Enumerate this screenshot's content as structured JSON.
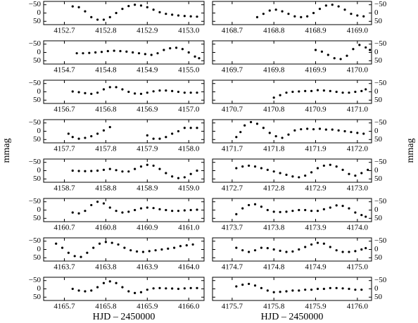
{
  "chart_data": [
    {
      "type": "scatter",
      "color": "#000000",
      "y_inverted": true,
      "y_axis_side": "left",
      "xlim": [
        4152.65,
        4153.037
      ],
      "ylim": [
        -70,
        70
      ],
      "xticks": [
        4152.7,
        4152.8,
        4152.9,
        {
          "value": 4153.0,
          "label": "4153.0"
        }
      ],
      "yticks": [
        {
          "value": -50,
          "label": "−50"
        },
        0,
        50
      ],
      "x": [
        4152.72,
        4152.735,
        4152.75,
        4152.765,
        4152.78,
        4152.795,
        4152.81,
        4152.825,
        4152.84,
        4152.855,
        4152.87,
        4152.885,
        4152.9,
        4152.915,
        4152.93,
        4152.945,
        4152.96,
        4152.975,
        4152.99,
        4153.005,
        4153.02
      ],
      "values": [
        -40,
        -35,
        -10,
        25,
        40,
        40,
        25,
        0,
        -25,
        -42,
        -50,
        -45,
        -35,
        -20,
        -5,
        5,
        10,
        15,
        18,
        20,
        22
      ]
    },
    {
      "type": "scatter",
      "color": "#000000",
      "y_inverted": true,
      "y_axis_side": "left",
      "xlim": [
        4154.65,
        4155.037
      ],
      "ylim": [
        -70,
        70
      ],
      "xticks": [
        4154.7,
        4154.8,
        4154.9,
        {
          "value": 4155.0,
          "label": "4155.0"
        }
      ],
      "yticks": [
        {
          "value": -50,
          "label": "−50"
        },
        0,
        50
      ],
      "x": [
        4154.73,
        4154.745,
        4154.76,
        4154.775,
        4154.79,
        4154.805,
        4154.82,
        4154.835,
        4154.85,
        4154.865,
        4154.88,
        4154.895,
        4154.91,
        4154.925,
        4154.94,
        4154.955,
        4154.97,
        4154.985,
        4155.0,
        4155.015,
        4155.025
      ],
      "values": [
        5,
        5,
        3,
        0,
        -3,
        -8,
        -10,
        -8,
        -5,
        0,
        5,
        10,
        15,
        5,
        -15,
        -25,
        -28,
        -20,
        0,
        25,
        35
      ]
    },
    {
      "type": "scatter",
      "color": "#000000",
      "y_inverted": true,
      "y_axis_side": "left",
      "xlim": [
        4156.65,
        4157.037
      ],
      "ylim": [
        -70,
        70
      ],
      "xticks": [
        4156.7,
        4156.8,
        4156.9,
        {
          "value": 4157.0,
          "label": "4157.0"
        }
      ],
      "yticks": [
        {
          "value": -50,
          "label": "−50"
        },
        0,
        50
      ],
      "x": [
        4156.72,
        4156.735,
        4156.75,
        4156.765,
        4156.78,
        4156.795,
        4156.81,
        4156.825,
        4156.84,
        4156.855,
        4156.87,
        4156.885,
        4156.9,
        4156.915,
        4156.93,
        4156.945,
        4156.96,
        4156.975,
        4156.99,
        4157.005,
        4157.02
      ],
      "values": [
        -2,
        2,
        8,
        12,
        5,
        -15,
        -28,
        -28,
        -15,
        0,
        10,
        12,
        5,
        -3,
        -8,
        -8,
        -5,
        0,
        5,
        5,
        5
      ]
    },
    {
      "type": "scatter",
      "color": "#000000",
      "y_inverted": true,
      "y_axis_side": "left",
      "ylabel": "mmag",
      "xlim": [
        4157.65,
        4158.037
      ],
      "ylim": [
        -70,
        70
      ],
      "xticks": [
        4157.7,
        4157.8,
        4157.9,
        {
          "value": 4158.0,
          "label": "4158.0"
        }
      ],
      "yticks": [
        {
          "value": -50,
          "label": "−50"
        },
        0,
        50
      ],
      "x": [
        4157.71,
        4157.72,
        4157.735,
        4157.75,
        4157.765,
        4157.78,
        4157.795,
        4157.81,
        4157.9,
        4157.915,
        4157.93,
        4157.945,
        4157.96,
        4157.975,
        4157.99,
        4158.005,
        4158.02
      ],
      "values": [
        15,
        35,
        45,
        40,
        30,
        15,
        -5,
        -25,
        25,
        45,
        45,
        35,
        15,
        0,
        -20,
        -20,
        -20
      ]
    },
    {
      "type": "scatter",
      "color": "#000000",
      "y_inverted": true,
      "y_axis_side": "left",
      "xlim": [
        4158.65,
        4159.037
      ],
      "ylim": [
        -70,
        70
      ],
      "xticks": [
        4158.7,
        4158.8,
        4158.9,
        {
          "value": 4159.0,
          "label": "4159.0"
        }
      ],
      "yticks": [
        {
          "value": -50,
          "label": "−50"
        },
        0,
        50
      ],
      "x": [
        4158.72,
        4158.735,
        4158.75,
        4158.765,
        4158.78,
        4158.795,
        4158.81,
        4158.825,
        4158.84,
        4158.855,
        4158.87,
        4158.885,
        4158.9,
        4158.915,
        4158.93,
        4158.945,
        4158.96,
        4158.975,
        4158.99,
        4159.005,
        4159.02
      ],
      "values": [
        0,
        2,
        3,
        2,
        0,
        -5,
        -10,
        -3,
        5,
        5,
        -10,
        -25,
        -35,
        -30,
        -10,
        15,
        35,
        45,
        40,
        20,
        0
      ]
    },
    {
      "type": "scatter",
      "color": "#000000",
      "y_inverted": true,
      "y_axis_side": "left",
      "xlim": [
        4160.65,
        4161.037
      ],
      "ylim": [
        -70,
        70
      ],
      "xticks": [
        4160.7,
        4160.8,
        4160.9,
        {
          "value": 4161.0,
          "label": "4161.0"
        }
      ],
      "yticks": [
        {
          "value": -50,
          "label": "−50"
        },
        0,
        50
      ],
      "x": [
        4160.72,
        4160.735,
        4160.75,
        4160.765,
        4160.78,
        4160.795,
        4160.81,
        4160.825,
        4160.84,
        4160.855,
        4160.87,
        4160.885,
        4160.9,
        4160.915,
        4160.93,
        4160.945,
        4160.96,
        4160.975,
        4160.99,
        4161.005,
        4161.02
      ],
      "values": [
        15,
        20,
        5,
        -30,
        -50,
        -40,
        -15,
        5,
        15,
        10,
        0,
        -10,
        -15,
        -12,
        -5,
        0,
        5,
        5,
        2,
        0,
        -2
      ]
    },
    {
      "type": "scatter",
      "color": "#000000",
      "y_inverted": true,
      "y_axis_side": "left",
      "xlim": [
        4163.65,
        4164.037
      ],
      "ylim": [
        -70,
        70
      ],
      "xticks": [
        4163.7,
        4163.8,
        4163.9,
        {
          "value": 4164.0,
          "label": "4164.0"
        }
      ],
      "yticks": [
        {
          "value": -50,
          "label": "−50"
        },
        0,
        50
      ],
      "x": [
        4163.68,
        4163.695,
        4163.71,
        4163.725,
        4163.74,
        4163.755,
        4163.77,
        4163.785,
        4163.8,
        4163.815,
        4163.83,
        4163.845,
        4163.86,
        4163.875,
        4163.89,
        4163.905,
        4163.92,
        4163.935,
        4163.95,
        4163.965,
        4163.98,
        4163.995,
        4164.01
      ],
      "values": [
        -35,
        -10,
        20,
        40,
        45,
        20,
        -10,
        -35,
        -45,
        -40,
        -30,
        -10,
        5,
        12,
        15,
        10,
        5,
        0,
        -5,
        -10,
        -20,
        -25,
        -30
      ]
    },
    {
      "type": "scatter",
      "color": "#000000",
      "y_inverted": true,
      "y_axis_side": "left",
      "xlabel": "HJD – 2450000",
      "xlim": [
        4165.65,
        4166.037
      ],
      "ylim": [
        -70,
        70
      ],
      "xticks": [
        4165.7,
        4165.8,
        4165.9,
        {
          "value": 4166.0,
          "label": "4166.0"
        }
      ],
      "yticks": [
        {
          "value": -50,
          "label": "−50"
        },
        0,
        50
      ],
      "x": [
        4165.72,
        4165.735,
        4165.75,
        4165.765,
        4165.78,
        4165.795,
        4165.81,
        4165.825,
        4165.84,
        4165.855,
        4165.87,
        4165.885,
        4165.9,
        4165.915,
        4165.93,
        4165.945,
        4165.96,
        4165.975,
        4165.99,
        4166.005,
        4166.02
      ],
      "values": [
        0,
        10,
        15,
        10,
        -10,
        -35,
        -45,
        -35,
        -10,
        15,
        25,
        20,
        5,
        -3,
        -5,
        -3,
        -2,
        0,
        -3,
        -5,
        -5
      ]
    },
    {
      "type": "scatter",
      "color": "#000000",
      "y_inverted": true,
      "y_axis_side": "right",
      "xlim": [
        4168.653,
        4169.034
      ],
      "ylim": [
        -70,
        70
      ],
      "xticks": [
        4168.7,
        4168.8,
        4168.9,
        {
          "value": 4169.0,
          "label": "4169.0"
        }
      ],
      "yticks": [
        {
          "value": -50,
          "label": "−50"
        },
        0,
        50
      ],
      "x": [
        4168.76,
        4168.775,
        4168.79,
        4168.805,
        4168.82,
        4168.835,
        4168.85,
        4168.865,
        4168.88,
        4168.895,
        4168.91,
        4168.925,
        4168.94,
        4168.955,
        4168.97,
        4168.985,
        4169.0,
        4169.015
      ],
      "values": [
        25,
        5,
        -15,
        -20,
        -10,
        5,
        20,
        25,
        20,
        0,
        -25,
        -45,
        -50,
        -40,
        -20,
        5,
        15,
        20
      ]
    },
    {
      "type": "scatter",
      "color": "#000000",
      "y_inverted": true,
      "y_axis_side": "right",
      "xlim": [
        4169.653,
        4170.034
      ],
      "ylim": [
        -70,
        70
      ],
      "xticks": [
        4169.7,
        4169.8,
        4169.9,
        {
          "value": 4170.0,
          "label": "4170.0"
        }
      ],
      "yticks": [
        {
          "value": -50,
          "label": "−50"
        },
        0,
        50
      ],
      "x": [
        4169.9,
        4169.915,
        4169.93,
        4169.945,
        4169.96,
        4169.975,
        4169.99,
        4170.005,
        4170.02,
        4170.03
      ],
      "values": [
        -15,
        -5,
        15,
        35,
        40,
        20,
        -20,
        -45,
        -30,
        -15
      ]
    },
    {
      "type": "scatter",
      "color": "#000000",
      "y_inverted": true,
      "y_axis_side": "right",
      "xlim": [
        4170.653,
        4171.034
      ],
      "ylim": [
        -70,
        70
      ],
      "xticks": [
        4170.7,
        4170.8,
        4170.9,
        {
          "value": 4171.0,
          "label": "4171.0"
        }
      ],
      "yticks": [
        {
          "value": -50,
          "label": "−50"
        },
        0,
        50
      ],
      "x": [
        4170.8,
        4170.815,
        4170.83,
        4170.845,
        4170.86,
        4170.875,
        4170.89,
        4170.905,
        4170.92,
        4170.935,
        4170.95,
        4170.965,
        4170.98,
        4170.995,
        4171.01,
        4171.02
      ],
      "values": [
        35,
        20,
        5,
        0,
        -2,
        -5,
        -5,
        -10,
        -8,
        -5,
        0,
        5,
        5,
        0,
        -5,
        -15
      ]
    },
    {
      "type": "scatter",
      "color": "#000000",
      "y_inverted": true,
      "y_axis_side": "right",
      "ylabel": "mmag",
      "xlim": [
        4171.653,
        4172.034
      ],
      "ylim": [
        -70,
        70
      ],
      "xticks": [
        4171.7,
        4171.8,
        4171.9,
        {
          "value": 4172.0,
          "label": "4172.0"
        }
      ],
      "yticks": [
        {
          "value": -50,
          "label": "−50"
        },
        0,
        50
      ],
      "x": [
        4171.71,
        4171.72,
        4171.73,
        4171.745,
        4171.76,
        4171.775,
        4171.79,
        4171.805,
        4171.82,
        4171.835,
        4171.85,
        4171.865,
        4171.88,
        4171.895,
        4171.91,
        4171.925,
        4171.94,
        4171.955,
        4171.97,
        4171.985,
        4172.0,
        4172.015
      ],
      "values": [
        35,
        5,
        -35,
        -55,
        -45,
        -20,
        10,
        30,
        40,
        20,
        -5,
        -12,
        -15,
        -12,
        -15,
        -10,
        -10,
        -5,
        0,
        5,
        10,
        15
      ]
    },
    {
      "type": "scatter",
      "color": "#000000",
      "y_inverted": true,
      "y_axis_side": "right",
      "xlim": [
        4172.653,
        4173.034
      ],
      "ylim": [
        -70,
        70
      ],
      "xticks": [
        4172.7,
        4172.8,
        4172.9,
        {
          "value": 4173.0,
          "label": "4173.0"
        }
      ],
      "yticks": [
        {
          "value": -50,
          "label": "−50"
        },
        0,
        50
      ],
      "x": [
        4172.71,
        4172.725,
        4172.74,
        4172.755,
        4172.77,
        4172.785,
        4172.8,
        4172.815,
        4172.83,
        4172.845,
        4172.86,
        4172.875,
        4172.89,
        4172.905,
        4172.92,
        4172.935,
        4172.95,
        4172.965,
        4172.98,
        4172.995,
        4173.01,
        4173.025
      ],
      "values": [
        -15,
        -25,
        -30,
        -25,
        -15,
        -5,
        5,
        15,
        25,
        35,
        40,
        30,
        10,
        -15,
        -30,
        -35,
        -25,
        -5,
        20,
        30,
        15,
        -5
      ]
    },
    {
      "type": "scatter",
      "color": "#000000",
      "y_inverted": true,
      "y_axis_side": "right",
      "xlim": [
        4173.653,
        4174.034
      ],
      "ylim": [
        -70,
        70
      ],
      "xticks": [
        4173.7,
        4173.8,
        4173.9,
        {
          "value": 4174.0,
          "label": "4174.0"
        }
      ],
      "yticks": [
        {
          "value": -50,
          "label": "−50"
        },
        0,
        50
      ],
      "x": [
        4173.71,
        4173.725,
        4173.74,
        4173.755,
        4173.77,
        4173.785,
        4173.8,
        4173.815,
        4173.83,
        4173.845,
        4173.86,
        4173.875,
        4173.89,
        4173.905,
        4173.92,
        4173.935,
        4173.95,
        4173.965,
        4173.98,
        4173.995,
        4174.01,
        4174.02
      ],
      "values": [
        25,
        -10,
        -30,
        -35,
        -20,
        0,
        10,
        12,
        10,
        5,
        0,
        0,
        5,
        5,
        -5,
        -15,
        -28,
        -25,
        -10,
        15,
        30,
        40
      ]
    },
    {
      "type": "scatter",
      "color": "#000000",
      "y_inverted": true,
      "y_axis_side": "right",
      "xlim": [
        4174.653,
        4175.034
      ],
      "ylim": [
        -70,
        70
      ],
      "xticks": [
        4174.7,
        4174.8,
        4174.9,
        {
          "value": 4175.0,
          "label": "4175.0"
        }
      ],
      "yticks": [
        {
          "value": -50,
          "label": "−50"
        },
        0,
        50
      ],
      "x": [
        4174.71,
        4174.725,
        4174.74,
        4174.755,
        4174.77,
        4174.785,
        4174.8,
        4174.815,
        4174.83,
        4174.845,
        4174.86,
        4174.875,
        4174.89,
        4174.905,
        4174.92,
        4174.935,
        4174.95,
        4174.965,
        4174.98,
        4174.995,
        4175.01,
        4175.02
      ],
      "values": [
        -10,
        5,
        15,
        5,
        -10,
        -8,
        0,
        8,
        15,
        12,
        0,
        -15,
        -30,
        -40,
        -35,
        -15,
        5,
        15,
        15,
        10,
        0,
        -8
      ]
    },
    {
      "type": "scatter",
      "color": "#000000",
      "y_inverted": true,
      "y_axis_side": "right",
      "xlabel": "HJD – 2450000",
      "xlim": [
        4175.653,
        4176.034
      ],
      "ylim": [
        -70,
        70
      ],
      "xticks": [
        4175.7,
        4175.8,
        4175.9,
        {
          "value": 4176.0,
          "label": "4176.0"
        }
      ],
      "yticks": [
        {
          "value": -50,
          "label": "−50"
        },
        0,
        50
      ],
      "x": [
        4175.71,
        4175.725,
        4175.74,
        4175.755,
        4175.77,
        4175.785,
        4175.8,
        4175.815,
        4175.83,
        4175.845,
        4175.86,
        4175.875,
        4175.89,
        4175.905,
        4175.92,
        4175.935,
        4175.95,
        4175.965,
        4175.98,
        4175.995,
        4176.01
      ],
      "values": [
        -15,
        -25,
        -30,
        -20,
        -5,
        10,
        20,
        18,
        15,
        10,
        10,
        5,
        5,
        0,
        0,
        -5,
        -5,
        -3,
        0,
        5,
        5
      ]
    }
  ]
}
